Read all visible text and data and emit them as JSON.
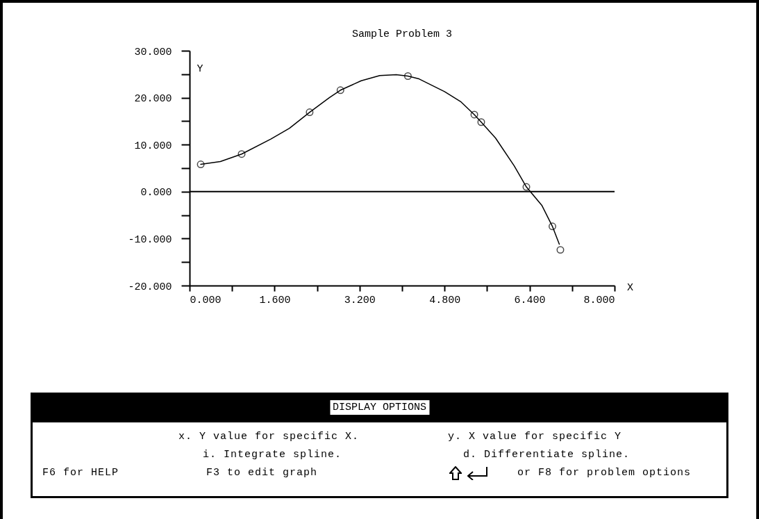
{
  "chart_data": {
    "type": "line",
    "title": "Sample Problem 3",
    "xlabel": "X",
    "ylabel": "Y",
    "xlim": [
      0,
      8
    ],
    "ylim": [
      -20,
      30
    ],
    "xticks": [
      {
        "value": 0,
        "label": "0.000"
      },
      {
        "value": 0.8,
        "label": null
      },
      {
        "value": 1.6,
        "label": "1.600"
      },
      {
        "value": 2.4,
        "label": null
      },
      {
        "value": 3.2,
        "label": "3.200"
      },
      {
        "value": 4,
        "label": null
      },
      {
        "value": 4.8,
        "label": "4.800"
      },
      {
        "value": 5.6,
        "label": null
      },
      {
        "value": 6.4,
        "label": "6.400"
      },
      {
        "value": 7.2,
        "label": null
      },
      {
        "value": 8,
        "label": "8.000"
      }
    ],
    "yticks": [
      {
        "value": -20,
        "label": "-20.000"
      },
      {
        "value": -15,
        "label": null
      },
      {
        "value": -10,
        "label": "-10.000"
      },
      {
        "value": -5,
        "label": null
      },
      {
        "value": 0,
        "label": "0.000"
      },
      {
        "value": 5,
        "label": null
      },
      {
        "value": 10,
        "label": "10.000"
      },
      {
        "value": 15,
        "label": null
      },
      {
        "value": 20,
        "label": "20.000"
      },
      {
        "value": 25,
        "label": null
      },
      {
        "value": 30,
        "label": "30.000"
      }
    ],
    "grid": false,
    "series": [
      {
        "color": "#000000",
        "marker": "none",
        "x": [
          0.21,
          0.58,
          0.98,
          1.53,
          1.88,
          2.26,
          2.63,
          2.84,
          3.23,
          3.58,
          3.89,
          4.11,
          4.32,
          4.8,
          5.11,
          5.36,
          5.49,
          5.76,
          6.11,
          6.34,
          6.63,
          6.83,
          6.96
        ],
        "values": [
          5.8,
          6.4,
          8.0,
          11.2,
          13.5,
          16.9,
          20.0,
          21.6,
          23.6,
          24.7,
          24.9,
          24.6,
          24.0,
          21.3,
          19.1,
          16.4,
          14.8,
          11.4,
          5.5,
          1.0,
          -2.9,
          -7.4,
          -11.2
        ]
      },
      {
        "type": "scatter",
        "color": "#000000",
        "marker": "circle",
        "x": [
          0.21,
          0.98,
          2.26,
          2.84,
          4.11,
          5.36,
          5.49,
          6.34,
          6.83,
          6.98
        ],
        "values": [
          5.8,
          8.0,
          16.9,
          21.6,
          24.6,
          16.4,
          14.8,
          1.0,
          -7.4,
          -12.4
        ]
      }
    ],
    "ref_lines": [
      {
        "axis": "y",
        "value": 0
      }
    ],
    "annotations": [
      "DISPLAY OPTIONS",
      "x.  Y value for specific X.",
      "y.  X value for specific Y",
      "i.  Integrate spline.",
      "d.  Differentiate spline.",
      "F6 for HELP",
      "F3 to edit graph",
      "or F8 for problem options"
    ]
  }
}
